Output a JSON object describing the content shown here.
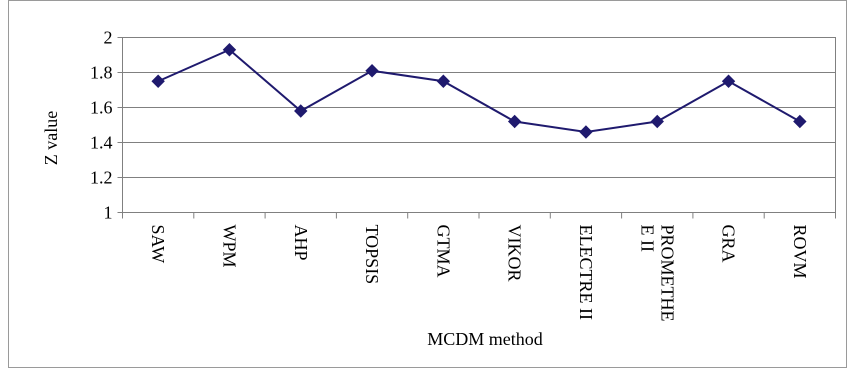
{
  "chart_data": {
    "type": "line",
    "title": "",
    "xlabel": "MCDM method",
    "ylabel": "Z value",
    "ylim": [
      1,
      2
    ],
    "yticks": [
      "1",
      "1.2",
      "1.4",
      "1.6",
      "1.8",
      "2"
    ],
    "categories": [
      "SAW",
      "WPM",
      "AHP",
      "TOPSIS",
      "GTMA",
      "VIKOR",
      "ELECTRE II",
      [
        "PROMETHE",
        "E II"
      ],
      "GRA",
      "ROVM"
    ],
    "series": [
      {
        "values": [
          1.75,
          1.93,
          1.58,
          1.81,
          1.75,
          1.52,
          1.46,
          1.52,
          1.75,
          1.52
        ],
        "color": "#1f1a6e",
        "marker": "diamond"
      }
    ],
    "grid": "horizontal",
    "legend": "none"
  }
}
